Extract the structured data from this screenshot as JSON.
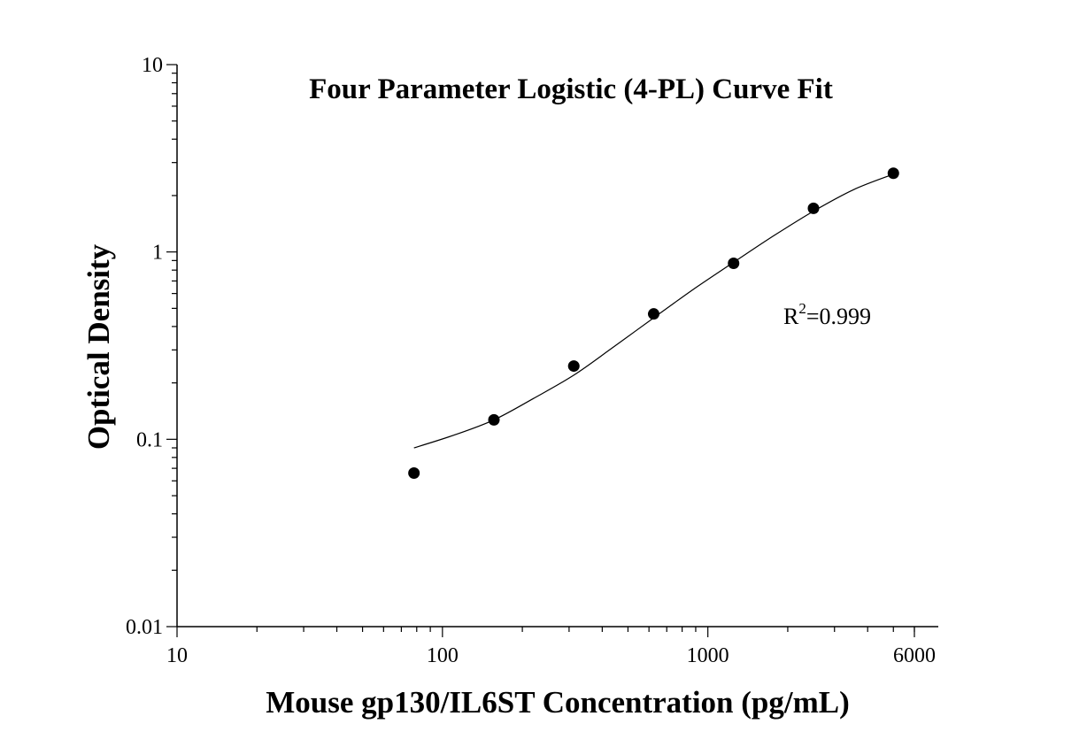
{
  "chart_data": {
    "type": "scatter",
    "title": "Four Parameter Logistic (4-PL) Curve Fit",
    "xlabel": "Mouse gp130/IL6ST Concentration (pg/mL)",
    "ylabel": "Optical Density",
    "x_scale": "log",
    "y_scale": "log",
    "xlim": [
      10,
      6000
    ],
    "ylim": [
      0.01,
      10
    ],
    "x_ticks": [
      {
        "value": 10,
        "label": "10"
      },
      {
        "value": 100,
        "label": "100"
      },
      {
        "value": 1000,
        "label": "1000"
      },
      {
        "value": 6000,
        "label": "6000"
      }
    ],
    "y_ticks": [
      {
        "value": 0.01,
        "label": "0.01"
      },
      {
        "value": 0.1,
        "label": "0.1"
      },
      {
        "value": 1,
        "label": "1"
      },
      {
        "value": 10,
        "label": "10"
      }
    ],
    "grid": false,
    "series": [
      {
        "points": [
          {
            "x": 78.1,
            "y": 0.066
          },
          {
            "x": 156.3,
            "y": 0.127
          },
          {
            "x": 312.5,
            "y": 0.246
          },
          {
            "x": 625,
            "y": 0.467
          },
          {
            "x": 1250,
            "y": 0.87
          },
          {
            "x": 2500,
            "y": 1.71
          },
          {
            "x": 5000,
            "y": 2.63
          }
        ]
      }
    ],
    "fit_curve": {
      "model": "4-PL",
      "points": [
        {
          "x": 78.1,
          "y": 0.09
        },
        {
          "x": 110,
          "y": 0.105
        },
        {
          "x": 156.3,
          "y": 0.127
        },
        {
          "x": 220,
          "y": 0.165
        },
        {
          "x": 312.5,
          "y": 0.22
        },
        {
          "x": 440,
          "y": 0.31
        },
        {
          "x": 625,
          "y": 0.445
        },
        {
          "x": 880,
          "y": 0.63
        },
        {
          "x": 1250,
          "y": 0.88
        },
        {
          "x": 1770,
          "y": 1.22
        },
        {
          "x": 2500,
          "y": 1.65
        },
        {
          "x": 3540,
          "y": 2.15
        },
        {
          "x": 5000,
          "y": 2.6
        }
      ]
    },
    "annotation": {
      "base": "R",
      "superscript": "2",
      "text": "=0.999"
    }
  }
}
